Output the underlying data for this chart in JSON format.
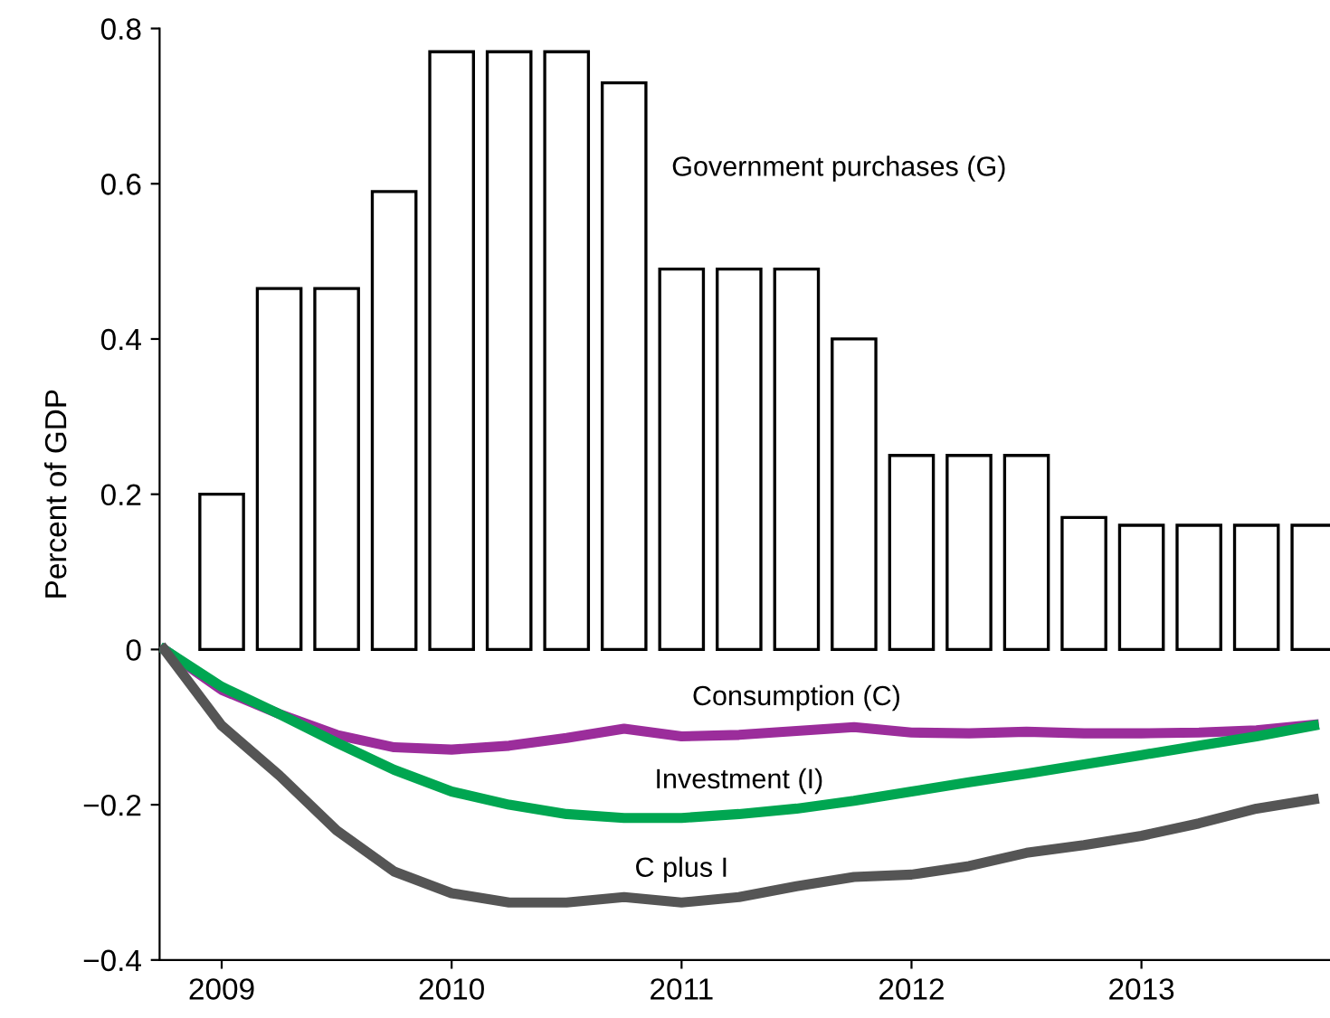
{
  "chart_data": {
    "type": "line",
    "ylabel": "Percent of GDP",
    "xlim": [
      2008.73,
      2013.82
    ],
    "ylim": [
      -0.4,
      0.8
    ],
    "xticks": [
      2009,
      2010,
      2011,
      2012,
      2013
    ],
    "yticks": [
      {
        "value": -0.4,
        "label": "−0.4"
      },
      {
        "value": -0.2,
        "label": "−0.2"
      },
      0,
      0.2,
      0.4,
      0.6,
      0.8
    ],
    "grid": false,
    "legend": false,
    "marker": "none",
    "line_style": "solid",
    "series": [
      {
        "name": "Government purchases (G)",
        "type": "bar",
        "color": "#ffffff",
        "x": [
          2009,
          2009.25,
          2009.5,
          2009.75,
          2010,
          2010.25,
          2010.5,
          2010.75,
          2011,
          2011.25,
          2011.5,
          2011.75,
          2012,
          2012.25,
          2012.5,
          2012.75,
          2013,
          2013.25,
          2013.5,
          2013.75
        ],
        "values": [
          0.2,
          0.465,
          0.465,
          0.59,
          0.77,
          0.77,
          0.77,
          0.73,
          0.49,
          0.49,
          0.49,
          0.4,
          0.25,
          0.25,
          0.25,
          0.17,
          0.16,
          0.16,
          0.16,
          0.16
        ]
      },
      {
        "name": "Consumption (C)",
        "color": "#9b2d9b",
        "x": [
          2008.75,
          2009,
          2009.25,
          2009.5,
          2009.75,
          2010,
          2010.25,
          2010.5,
          2010.75,
          2011,
          2011.25,
          2011.5,
          2011.75,
          2012,
          2012.25,
          2012.5,
          2012.75,
          2013,
          2013.25,
          2013.5,
          2013.75
        ],
        "values": [
          0,
          -0.052,
          -0.083,
          -0.11,
          -0.126,
          -0.129,
          -0.124,
          -0.114,
          -0.102,
          -0.112,
          -0.11,
          -0.105,
          -0.1,
          -0.107,
          -0.108,
          -0.106,
          -0.108,
          -0.108,
          -0.107,
          -0.104,
          -0.097
        ]
      },
      {
        "name": "Investment (I)",
        "color": "#00a651",
        "x": [
          2008.75,
          2009,
          2009.25,
          2009.5,
          2009.75,
          2010,
          2010.25,
          2010.5,
          2010.75,
          2011,
          2011.25,
          2011.5,
          2011.75,
          2012,
          2012.25,
          2012.5,
          2012.75,
          2013,
          2013.25,
          2013.5,
          2013.75
        ],
        "values": [
          0,
          -0.048,
          -0.083,
          -0.12,
          -0.155,
          -0.183,
          -0.2,
          -0.212,
          -0.217,
          -0.217,
          -0.212,
          -0.205,
          -0.195,
          -0.183,
          -0.171,
          -0.16,
          -0.148,
          -0.136,
          -0.124,
          -0.112,
          -0.098
        ]
      },
      {
        "name": "C plus I",
        "color": "#555555",
        "x": [
          2008.75,
          2009,
          2009.25,
          2009.5,
          2009.75,
          2010,
          2010.25,
          2010.5,
          2010.75,
          2011,
          2011.25,
          2011.5,
          2011.75,
          2012,
          2012.25,
          2012.5,
          2012.75,
          2013,
          2013.25,
          2013.5,
          2013.75
        ],
        "values": [
          0,
          -0.098,
          -0.162,
          -0.233,
          -0.286,
          -0.314,
          -0.326,
          -0.326,
          -0.319,
          -0.326,
          -0.319,
          -0.305,
          -0.293,
          -0.29,
          -0.279,
          -0.262,
          -0.252,
          -0.24,
          -0.224,
          -0.205,
          -0.193
        ]
      }
    ]
  }
}
